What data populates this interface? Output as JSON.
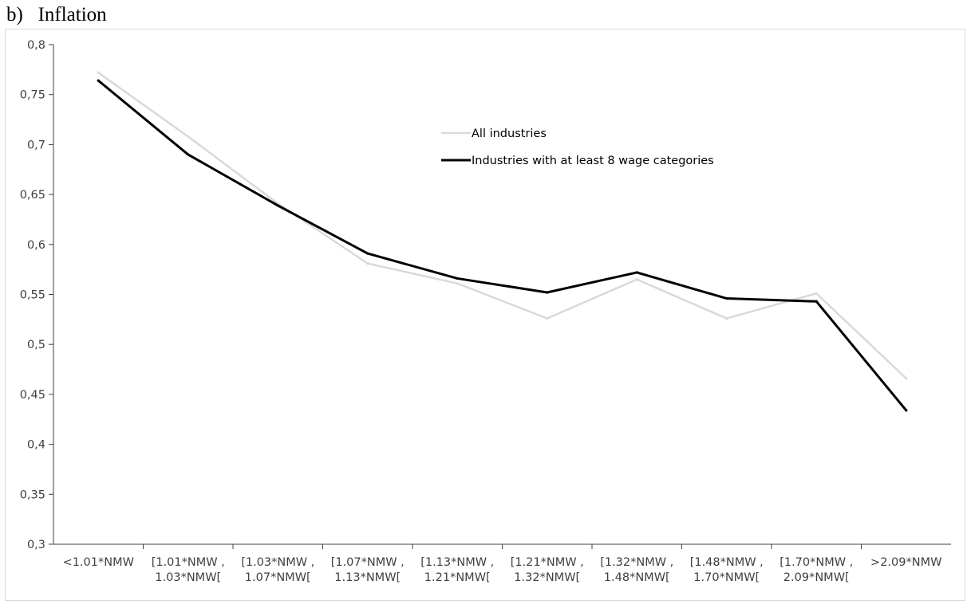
{
  "panel": {
    "label": "b)",
    "title": "Inflation"
  },
  "chart_data": {
    "type": "line",
    "title": "Inflation",
    "xlabel": "",
    "ylabel": "",
    "ylim": [
      0.3,
      0.8
    ],
    "yticks": [
      "0,3",
      "0,35",
      "0,4",
      "0,45",
      "0,5",
      "0,55",
      "0,6",
      "0,65",
      "0,7",
      "0,75",
      "0,8"
    ],
    "ytick_values": [
      0.3,
      0.35,
      0.4,
      0.45,
      0.5,
      0.55,
      0.6,
      0.65,
      0.7,
      0.75,
      0.8
    ],
    "grid": false,
    "legend_position": "top-center",
    "categories": [
      [
        "<1.01*NMW"
      ],
      [
        "[1.01*NMW ,",
        "1.03*NMW["
      ],
      [
        "[1.03*NMW ,",
        "1.07*NMW["
      ],
      [
        "[1.07*NMW ,",
        "1.13*NMW["
      ],
      [
        "[1.13*NMW ,",
        "1.21*NMW["
      ],
      [
        "[1.21*NMW ,",
        "1.32*NMW["
      ],
      [
        "[1.32*NMW ,",
        "1.48*NMW["
      ],
      [
        "[1.48*NMW ,",
        "1.70*NMW["
      ],
      [
        "[1.70*NMW ,",
        "2.09*NMW["
      ],
      [
        ">2.09*NMW"
      ]
    ],
    "series": [
      {
        "name": "All industries",
        "color": "#d9d9d9",
        "values": [
          0.772,
          0.708,
          0.641,
          0.581,
          0.561,
          0.526,
          0.565,
          0.526,
          0.551,
          0.466
        ]
      },
      {
        "name": "Industries with at least 8 wage categories",
        "color": "#000000",
        "values": [
          0.764,
          0.69,
          0.639,
          0.591,
          0.566,
          0.552,
          0.572,
          0.546,
          0.543,
          0.434
        ]
      }
    ]
  }
}
